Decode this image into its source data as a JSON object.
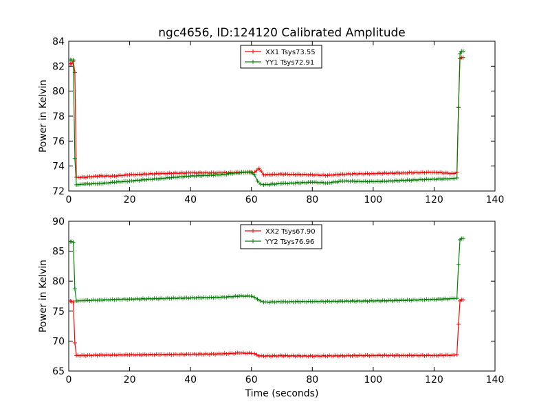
{
  "figure": {
    "title": "ngc4656, ID:124120 Calibrated Amplitude",
    "xlabel": "Time (seconds)"
  },
  "chart_data": [
    {
      "type": "line",
      "title": "ngc4656, ID:124120 Calibrated Amplitude",
      "xlabel": "",
      "ylabel": "Power in Kelvin",
      "xlim": [
        0,
        140
      ],
      "ylim": [
        72,
        84
      ],
      "xticks": [
        0,
        20,
        40,
        60,
        80,
        100,
        120,
        140
      ],
      "yticks": [
        72,
        74,
        76,
        78,
        80,
        82,
        84
      ],
      "grid": false,
      "legend_position": "top-center",
      "series": [
        {
          "name": "XX1 Tsys73.55",
          "color": "#ff0000",
          "marker": "plus",
          "x": [
            0.5,
            1,
            1.5,
            2,
            2.5,
            5,
            10,
            15,
            20,
            30,
            40,
            50,
            58,
            61,
            62.5,
            64,
            70,
            80,
            85,
            90,
            100,
            110,
            120,
            126.5,
            127.5,
            128,
            128.5,
            129,
            129.5
          ],
          "y": [
            82.2,
            82.2,
            82.4,
            81.5,
            73.1,
            73.1,
            73.2,
            73.2,
            73.3,
            73.4,
            73.45,
            73.45,
            73.5,
            73.5,
            73.8,
            73.3,
            73.35,
            73.3,
            73.25,
            73.35,
            73.4,
            73.45,
            73.5,
            73.4,
            73.5,
            78.7,
            82.6,
            82.7,
            82.7
          ]
        },
        {
          "name": "YY1 Tsys72.91",
          "color": "#008000",
          "marker": "plus",
          "x": [
            0.5,
            1,
            1.5,
            2,
            2.5,
            3,
            5,
            10,
            15,
            20,
            30,
            40,
            50,
            55,
            58,
            60,
            61,
            62,
            63,
            64,
            70,
            80,
            85,
            90,
            100,
            110,
            120,
            126.5,
            127.5,
            128,
            128.5,
            129,
            129.5
          ],
          "y": [
            82.5,
            82.5,
            82.5,
            74.6,
            72.5,
            72.5,
            72.55,
            72.6,
            72.7,
            72.8,
            73.0,
            73.2,
            73.3,
            73.45,
            73.5,
            73.5,
            73.3,
            72.8,
            72.55,
            72.5,
            72.6,
            72.7,
            72.65,
            72.8,
            72.75,
            72.85,
            72.95,
            73.0,
            73.05,
            78.7,
            83.0,
            83.2,
            83.2
          ]
        }
      ]
    },
    {
      "type": "line",
      "title": "",
      "xlabel": "Time (seconds)",
      "ylabel": "Power in Kelvin",
      "xlim": [
        0,
        140
      ],
      "ylim": [
        65,
        90
      ],
      "xticks": [
        0,
        20,
        40,
        60,
        80,
        100,
        120,
        140
      ],
      "yticks": [
        65,
        70,
        75,
        80,
        85,
        90
      ],
      "grid": false,
      "legend_position": "top-center",
      "series": [
        {
          "name": "XX2 Tsys67.90",
          "color": "#ff0000",
          "marker": "plus",
          "x": [
            0.5,
            1,
            1.5,
            2,
            2.5,
            3,
            5,
            10,
            20,
            30,
            40,
            50,
            56,
            60,
            61,
            62.5,
            64,
            70,
            80,
            90,
            100,
            110,
            120,
            126.5,
            127.5,
            128,
            128.5,
            129,
            129.5
          ],
          "y": [
            76.7,
            76.6,
            76.5,
            69.7,
            67.6,
            67.6,
            67.6,
            67.65,
            67.7,
            67.75,
            67.8,
            67.85,
            68.0,
            67.95,
            67.9,
            67.5,
            67.5,
            67.55,
            67.5,
            67.55,
            67.6,
            67.6,
            67.6,
            67.65,
            67.75,
            72.8,
            76.7,
            76.9,
            76.9
          ]
        },
        {
          "name": "YY2 Tsys76.96",
          "color": "#008000",
          "marker": "plus",
          "x": [
            0.5,
            1,
            1.5,
            2,
            2.5,
            3,
            5,
            10,
            20,
            30,
            40,
            50,
            56,
            60,
            61,
            62,
            63,
            64,
            70,
            80,
            90,
            100,
            110,
            120,
            126.5,
            127.5,
            128,
            128.5,
            129,
            129.5
          ],
          "y": [
            86.6,
            86.6,
            86.5,
            78.7,
            76.7,
            76.7,
            76.75,
            76.85,
            77.0,
            77.1,
            77.2,
            77.3,
            77.5,
            77.5,
            77.3,
            77.0,
            76.7,
            76.5,
            76.55,
            76.6,
            76.65,
            76.7,
            76.8,
            76.95,
            77.1,
            77.15,
            82.8,
            86.9,
            87.1,
            87.1
          ]
        }
      ]
    }
  ]
}
